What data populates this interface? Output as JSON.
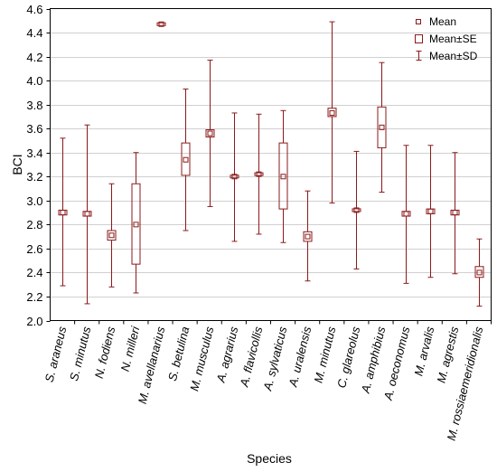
{
  "chart_data": {
    "type": "box",
    "xlabel": "Species",
    "ylabel": "BCI",
    "ylim": [
      2.0,
      4.6
    ],
    "yticks": [
      2.0,
      2.2,
      2.4,
      2.6,
      2.8,
      3.0,
      3.2,
      3.4,
      3.6,
      3.8,
      4.0,
      4.2,
      4.4,
      4.6
    ],
    "ytick_labels": [
      "2.0",
      "2.2",
      "2.4",
      "2.6",
      "2.8",
      "3.0",
      "3.2",
      "3.4",
      "3.6",
      "3.8",
      "4.0",
      "4.2",
      "4.4",
      "4.6"
    ],
    "grid": true,
    "legend_position": "top-right",
    "legend": [
      {
        "symbol": "mean",
        "label": "Mean"
      },
      {
        "symbol": "se-box",
        "label": "Mean±SE"
      },
      {
        "symbol": "sd-whisker",
        "label": "Mean±SD"
      }
    ],
    "color": "#8b1a1a",
    "categories": [
      "S. araneus",
      "S. minutus",
      "N. fodiens",
      "N. milleri",
      "M. avellanarius",
      "S. betulina",
      "M. musculus",
      "A. agrarius",
      "A. flavicollis",
      "A. sylvaticus",
      "A. uralensis",
      "M. minutus",
      "C. glareolus",
      "A. amphibius",
      "A. oeconomus",
      "M. arvalis",
      "M. agrestis",
      "M. rossiaemeridionalis"
    ],
    "mean": [
      2.9,
      2.89,
      2.71,
      2.8,
      4.47,
      3.34,
      3.56,
      3.2,
      3.22,
      3.2,
      2.7,
      3.73,
      2.92,
      3.61,
      2.89,
      2.91,
      2.9,
      2.4
    ],
    "se_low": [
      2.88,
      2.87,
      2.67,
      2.47,
      4.46,
      3.21,
      3.53,
      3.19,
      3.21,
      2.93,
      2.66,
      3.7,
      2.91,
      3.44,
      2.87,
      2.89,
      2.88,
      2.36
    ],
    "se_high": [
      2.92,
      2.91,
      2.75,
      3.14,
      4.48,
      3.48,
      3.59,
      3.21,
      3.23,
      3.48,
      2.74,
      3.77,
      2.93,
      3.78,
      2.91,
      2.93,
      2.92,
      2.45
    ],
    "sd_low": [
      2.29,
      2.14,
      2.28,
      2.23,
      4.47,
      2.75,
      2.95,
      2.66,
      2.72,
      2.65,
      2.33,
      2.98,
      2.43,
      3.07,
      2.31,
      2.36,
      2.39,
      2.12
    ],
    "sd_high": [
      3.52,
      3.63,
      3.14,
      3.4,
      4.47,
      3.93,
      4.17,
      3.73,
      3.72,
      3.75,
      3.08,
      4.49,
      3.41,
      4.15,
      3.46,
      3.46,
      3.4,
      2.68
    ]
  }
}
